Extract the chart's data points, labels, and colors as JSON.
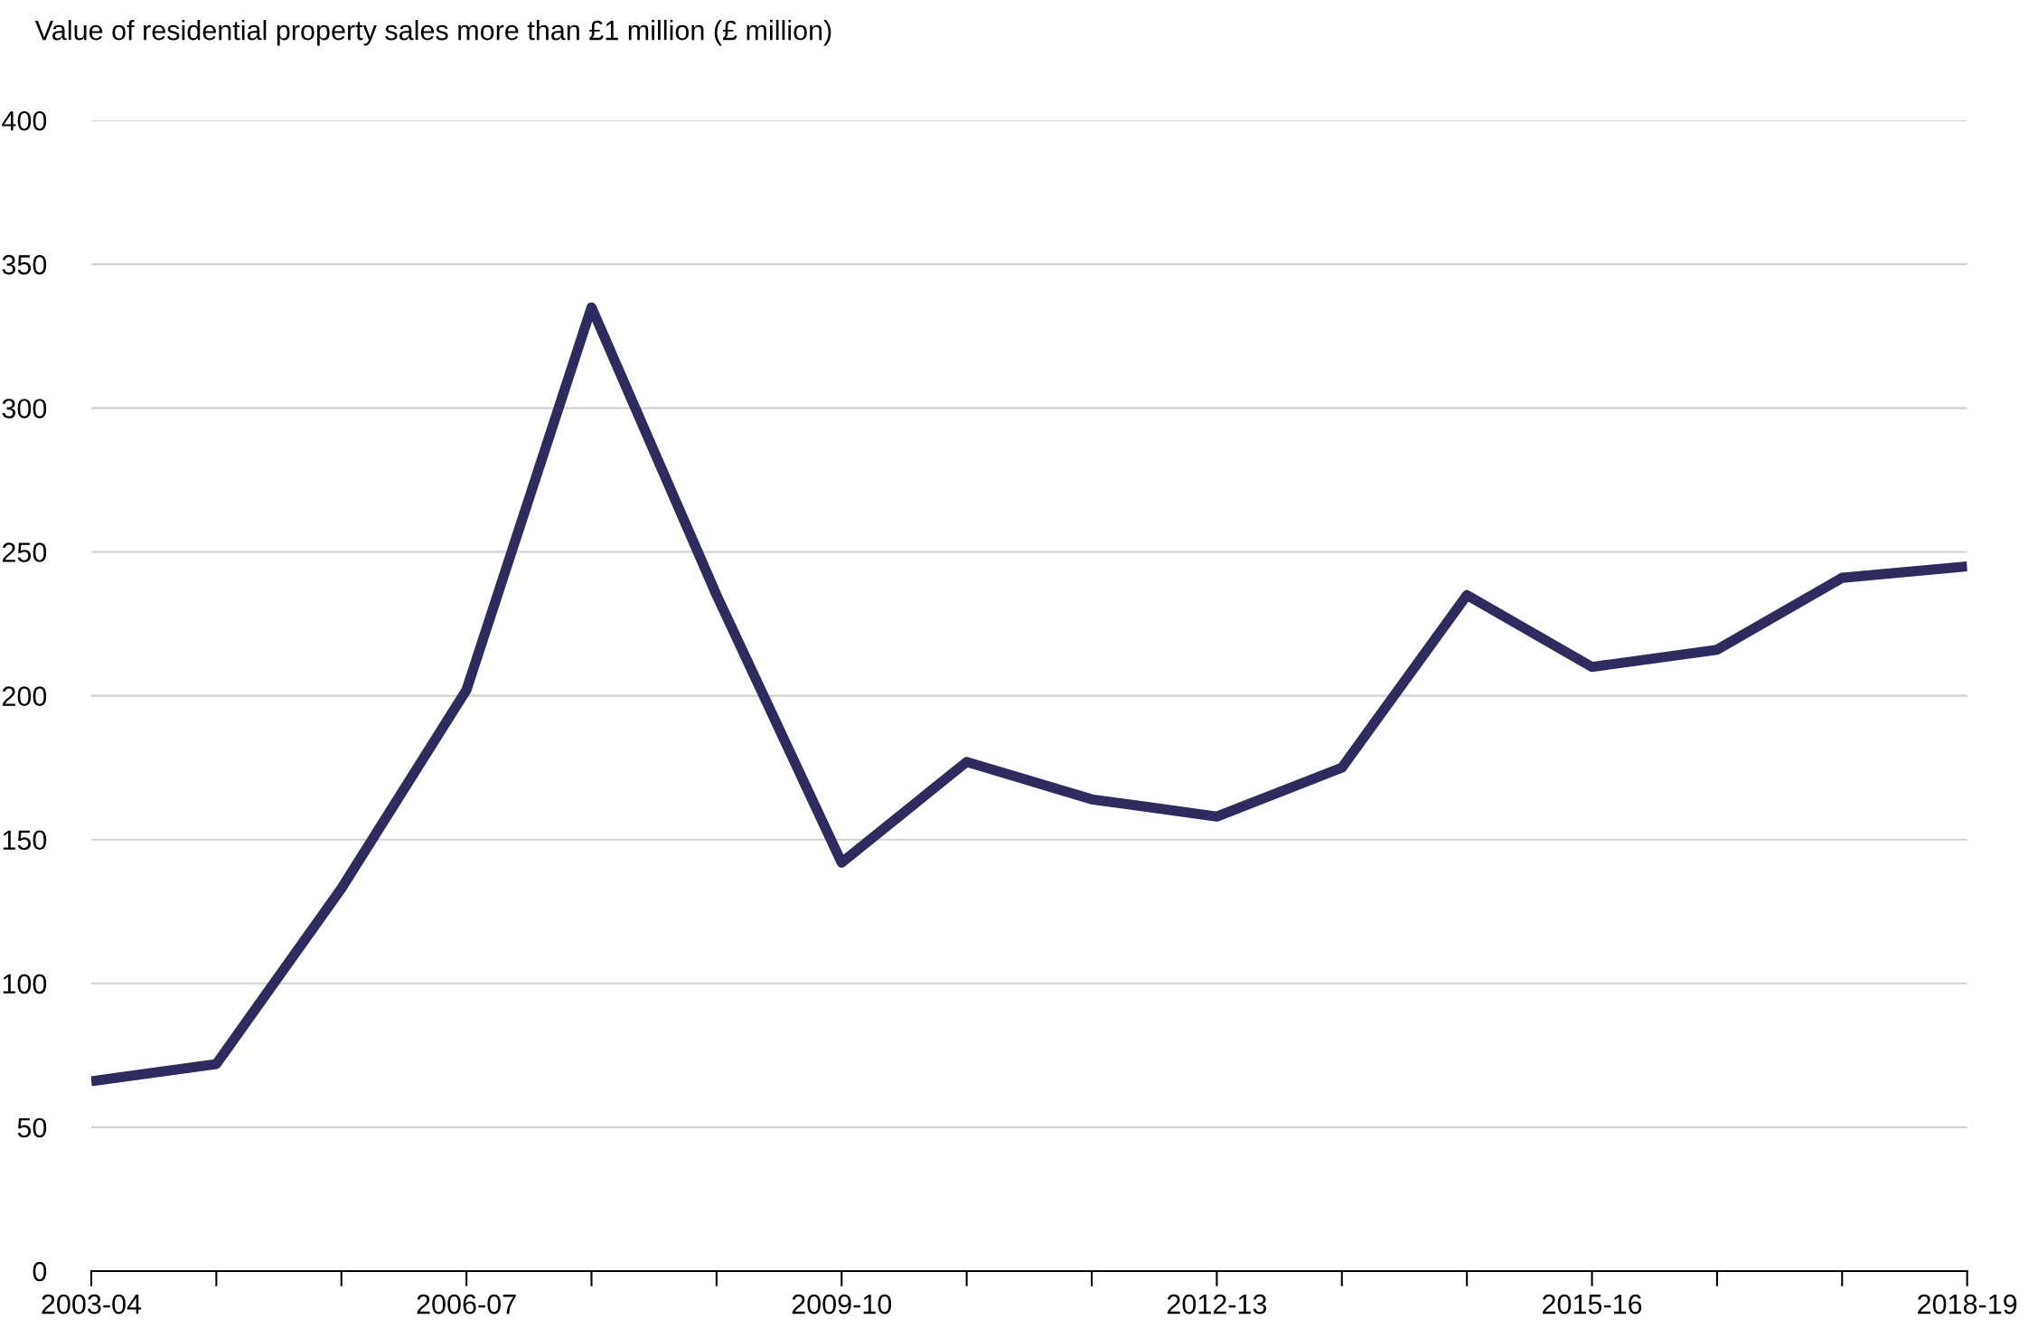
{
  "chart_data": {
    "type": "line",
    "ylabel": "Value of residential property sales more than £1 million (£ million)",
    "categories": [
      "2003-04",
      null,
      null,
      "2006-07",
      null,
      null,
      "2009-10",
      null,
      null,
      "2012-13",
      null,
      null,
      "2015-16",
      null,
      null,
      "2018-19"
    ],
    "series": [
      {
        "color": "#2e2b5f",
        "values": [
          66,
          72,
          133,
          202,
          335,
          235,
          142,
          177,
          164,
          158,
          175,
          235,
          210,
          216,
          241,
          245
        ]
      }
    ],
    "ylim": [
      0,
      400
    ],
    "yticks": [
      0,
      50,
      100,
      150,
      200,
      250,
      300,
      350,
      400
    ],
    "grid": "y",
    "marker": "none",
    "line_style": "solid"
  }
}
